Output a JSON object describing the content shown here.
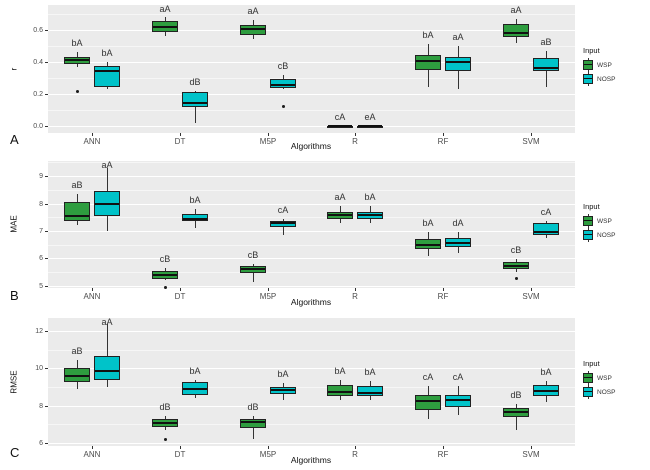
{
  "legend": {
    "title": "Input",
    "items": [
      {
        "label": "WSP",
        "color": "#2e9d3f"
      },
      {
        "label": "NOSP",
        "color": "#00c3c9"
      }
    ]
  },
  "colors": {
    "wsp_fill": "#2e9d3f",
    "nosp_fill": "#00c3c9",
    "panel_background": "#ebebeb",
    "gridline": "#ffffff",
    "box_border": "#222222",
    "tick_label": "#4d4d4d"
  },
  "chart_data": [
    {
      "type": "boxplot",
      "panel_label": "A",
      "ylabel": "r",
      "xlabel": "Algorithms",
      "categories": [
        "ANN",
        "DT",
        "M5P",
        "R",
        "RF",
        "SVM"
      ],
      "ylim": [
        -0.045,
        0.755
      ],
      "yticks": [
        {
          "v": 0.0,
          "label": "0.0"
        },
        {
          "v": 0.2,
          "label": "0.2"
        },
        {
          "v": 0.4,
          "label": "0.4"
        },
        {
          "v": 0.6,
          "label": "0.6"
        }
      ],
      "minor_gridlines": [
        0.1,
        0.3,
        0.5,
        0.7
      ],
      "series": [
        {
          "name": "WSP",
          "boxes": [
            {
              "category": "ANN",
              "low": 0.37,
              "q1": 0.385,
              "median": 0.41,
              "q3": 0.43,
              "high": 0.46,
              "outliers": [
                0.22
              ],
              "label": "bA"
            },
            {
              "category": "DT",
              "low": 0.56,
              "q1": 0.585,
              "median": 0.62,
              "q3": 0.655,
              "high": 0.68,
              "outliers": [],
              "label": "aA"
            },
            {
              "category": "M5P",
              "low": 0.545,
              "q1": 0.565,
              "median": 0.605,
              "q3": 0.63,
              "high": 0.66,
              "outliers": [],
              "label": "aA"
            },
            {
              "category": "R",
              "low": 0.0,
              "q1": 0.0,
              "median": 0.0,
              "q3": 0.0,
              "high": 0.0,
              "outliers": [],
              "label": "cA"
            },
            {
              "category": "RF",
              "low": 0.24,
              "q1": 0.35,
              "median": 0.405,
              "q3": 0.44,
              "high": 0.51,
              "outliers": [],
              "label": "bA"
            },
            {
              "category": "SVM",
              "low": 0.52,
              "q1": 0.557,
              "median": 0.583,
              "q3": 0.635,
              "high": 0.665,
              "outliers": [],
              "label": "aA"
            }
          ]
        },
        {
          "name": "NOSP",
          "boxes": [
            {
              "category": "ANN",
              "low": 0.23,
              "q1": 0.245,
              "median": 0.34,
              "q3": 0.375,
              "high": 0.4,
              "outliers": [],
              "label": "bA"
            },
            {
              "category": "DT",
              "low": 0.02,
              "q1": 0.12,
              "median": 0.145,
              "q3": 0.21,
              "high": 0.22,
              "outliers": [],
              "label": "dB"
            },
            {
              "category": "M5P",
              "low": 0.23,
              "q1": 0.235,
              "median": 0.255,
              "q3": 0.29,
              "high": 0.315,
              "outliers": [
                0.125
              ],
              "label": "cB"
            },
            {
              "category": "R",
              "low": 0.0,
              "q1": 0.0,
              "median": 0.0,
              "q3": 0.0,
              "high": 0.0,
              "outliers": [],
              "label": "eA"
            },
            {
              "category": "RF",
              "low": 0.23,
              "q1": 0.34,
              "median": 0.4,
              "q3": 0.43,
              "high": 0.5,
              "outliers": [],
              "label": "aA"
            },
            {
              "category": "SVM",
              "low": 0.24,
              "q1": 0.34,
              "median": 0.36,
              "q3": 0.425,
              "high": 0.47,
              "outliers": [],
              "label": "aB"
            }
          ]
        }
      ]
    },
    {
      "type": "boxplot",
      "panel_label": "B",
      "ylabel": "MAE",
      "xlabel": "Algorithms",
      "categories": [
        "ANN",
        "DT",
        "M5P",
        "R",
        "RF",
        "SVM"
      ],
      "ylim": [
        4.92,
        9.55
      ],
      "yticks": [
        {
          "v": 5,
          "label": "5"
        },
        {
          "v": 6,
          "label": "6"
        },
        {
          "v": 7,
          "label": "7"
        },
        {
          "v": 8,
          "label": "8"
        },
        {
          "v": 9,
          "label": "9"
        }
      ],
      "minor_gridlines": [
        5.5,
        6.5,
        7.5,
        8.5,
        9.5
      ],
      "series": [
        {
          "name": "WSP",
          "boxes": [
            {
              "category": "ANN",
              "low": 7.2,
              "q1": 7.35,
              "median": 7.55,
              "q3": 8.05,
              "high": 8.35,
              "outliers": [],
              "label": "aB"
            },
            {
              "category": "DT",
              "low": 5.2,
              "q1": 5.25,
              "median": 5.4,
              "q3": 5.55,
              "high": 5.65,
              "outliers": [
                4.95
              ],
              "label": "cB"
            },
            {
              "category": "M5P",
              "low": 5.15,
              "q1": 5.45,
              "median": 5.62,
              "q3": 5.72,
              "high": 5.78,
              "outliers": [],
              "label": "cB"
            },
            {
              "category": "R",
              "low": 7.3,
              "q1": 7.45,
              "median": 7.57,
              "q3": 7.7,
              "high": 7.9,
              "outliers": [],
              "label": "aA"
            },
            {
              "category": "RF",
              "low": 6.1,
              "q1": 6.35,
              "median": 6.5,
              "q3": 6.7,
              "high": 6.95,
              "outliers": [],
              "label": "bA"
            },
            {
              "category": "SVM",
              "low": 5.5,
              "q1": 5.62,
              "median": 5.73,
              "q3": 5.88,
              "high": 5.97,
              "outliers": [
                5.3
              ],
              "label": "cB"
            }
          ]
        },
        {
          "name": "NOSP",
          "boxes": [
            {
              "category": "ANN",
              "low": 7.0,
              "q1": 7.55,
              "median": 8.0,
              "q3": 8.45,
              "high": 9.3,
              "outliers": [],
              "label": "aA"
            },
            {
              "category": "DT",
              "low": 7.1,
              "q1": 7.35,
              "median": 7.45,
              "q3": 7.6,
              "high": 7.8,
              "outliers": [],
              "label": "bA"
            },
            {
              "category": "M5P",
              "low": 6.85,
              "q1": 7.15,
              "median": 7.28,
              "q3": 7.38,
              "high": 7.45,
              "outliers": [],
              "label": "cA"
            },
            {
              "category": "R",
              "low": 7.3,
              "q1": 7.45,
              "median": 7.57,
              "q3": 7.7,
              "high": 7.9,
              "outliers": [],
              "label": "bA"
            },
            {
              "category": "RF",
              "low": 6.2,
              "q1": 6.4,
              "median": 6.55,
              "q3": 6.75,
              "high": 6.95,
              "outliers": [],
              "label": "dA"
            },
            {
              "category": "SVM",
              "low": 6.75,
              "q1": 6.87,
              "median": 6.97,
              "q3": 7.3,
              "high": 7.38,
              "outliers": [],
              "label": "cA"
            }
          ]
        }
      ]
    },
    {
      "type": "boxplot",
      "panel_label": "C",
      "ylabel": "RMSE",
      "xlabel": "Algorithms",
      "categories": [
        "ANN",
        "DT",
        "M5P",
        "R",
        "RF",
        "SVM"
      ],
      "ylim": [
        5.85,
        12.69
      ],
      "yticks": [
        {
          "v": 6,
          "label": "6"
        },
        {
          "v": 8,
          "label": "8"
        },
        {
          "v": 10,
          "label": "10"
        },
        {
          "v": 12,
          "label": "12"
        }
      ],
      "minor_gridlines": [
        7,
        9,
        11
      ],
      "series": [
        {
          "name": "WSP",
          "boxes": [
            {
              "category": "ANN",
              "low": 8.9,
              "q1": 9.25,
              "median": 9.6,
              "q3": 10.0,
              "high": 10.45,
              "outliers": [],
              "label": "aB"
            },
            {
              "category": "DT",
              "low": 6.7,
              "q1": 6.85,
              "median": 7.1,
              "q3": 7.3,
              "high": 7.45,
              "outliers": [
                6.2
              ],
              "label": "dB"
            },
            {
              "category": "M5P",
              "low": 6.25,
              "q1": 6.8,
              "median": 7.15,
              "q3": 7.3,
              "high": 7.45,
              "outliers": [],
              "label": "dB"
            },
            {
              "category": "R",
              "low": 8.3,
              "q1": 8.5,
              "median": 8.75,
              "q3": 9.1,
              "high": 9.4,
              "outliers": [],
              "label": "bA"
            },
            {
              "category": "RF",
              "low": 7.3,
              "q1": 7.8,
              "median": 8.25,
              "q3": 8.6,
              "high": 9.05,
              "outliers": [],
              "label": "cA"
            },
            {
              "category": "SVM",
              "low": 6.7,
              "q1": 7.4,
              "median": 7.65,
              "q3": 7.9,
              "high": 8.1,
              "outliers": [],
              "label": "dB"
            }
          ]
        },
        {
          "name": "NOSP",
          "boxes": [
            {
              "category": "ANN",
              "low": 9.0,
              "q1": 9.4,
              "median": 9.85,
              "q3": 10.65,
              "high": 12.35,
              "outliers": [],
              "label": "aA"
            },
            {
              "category": "DT",
              "low": 8.4,
              "q1": 8.55,
              "median": 8.9,
              "q3": 9.25,
              "high": 9.4,
              "outliers": [],
              "label": "bA"
            },
            {
              "category": "M5P",
              "low": 8.3,
              "q1": 8.65,
              "median": 8.85,
              "q3": 9.0,
              "high": 9.2,
              "outliers": [],
              "label": "bA"
            },
            {
              "category": "R",
              "low": 8.3,
              "q1": 8.5,
              "median": 8.7,
              "q3": 9.05,
              "high": 9.35,
              "outliers": [],
              "label": "bA"
            },
            {
              "category": "RF",
              "low": 7.5,
              "q1": 7.95,
              "median": 8.3,
              "q3": 8.6,
              "high": 9.05,
              "outliers": [],
              "label": "cA"
            },
            {
              "category": "SVM",
              "low": 8.2,
              "q1": 8.5,
              "median": 8.8,
              "q3": 9.1,
              "high": 9.3,
              "outliers": [],
              "label": "bA"
            }
          ]
        }
      ]
    }
  ]
}
